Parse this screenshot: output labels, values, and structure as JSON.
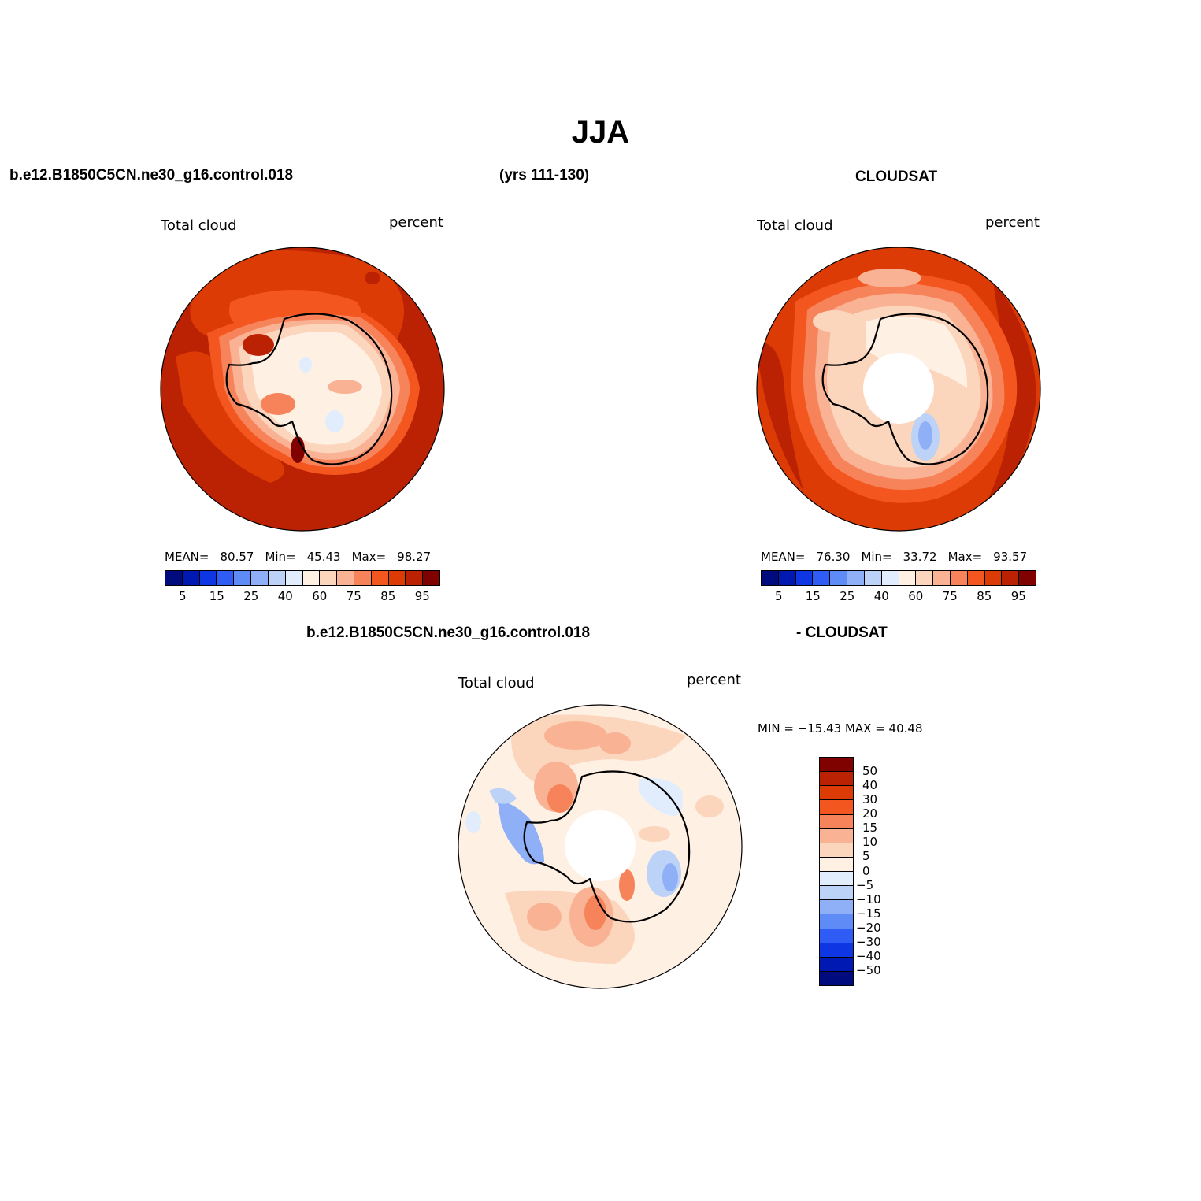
{
  "title": "JJA",
  "panel1": {
    "case_name": "b.e12.B1850C5CN.ne30_g16.control.018",
    "years": "(yrs 111-130)",
    "left_label": "Total cloud",
    "right_label": "percent",
    "mean_label": "MEAN=",
    "mean_value": "80.57",
    "min_label": "Min=",
    "min_value": "45.43",
    "max_label": "Max=",
    "max_value": "98.27"
  },
  "panel2": {
    "case_name": "CLOUDSAT",
    "left_label": "Total cloud",
    "right_label": "percent",
    "mean_label": "MEAN=",
    "mean_value": "76.30",
    "min_label": "Min=",
    "min_value": "33.72",
    "max_label": "Max=",
    "max_value": "93.57"
  },
  "panel3": {
    "case_name": "b.e12.B1850C5CN.ne30_g16.control.018",
    "minus_label": "- CLOUDSAT",
    "left_label": "Total cloud",
    "right_label": "percent",
    "minmax": "MIN = −15.43 MAX =   40.48"
  },
  "colorbar_abs": {
    "ticks": [
      "5",
      "15",
      "25",
      "40",
      "60",
      "75",
      "85",
      "95"
    ],
    "colors": [
      "#000b7e",
      "#0019b3",
      "#0f36e3",
      "#2e5cf4",
      "#5f8bf7",
      "#8fb0f6",
      "#bcd3f7",
      "#e1edfc",
      "#fff0e4",
      "#fcd5bd",
      "#f9b294",
      "#f7835b",
      "#f4561f",
      "#dd3b06",
      "#bb2203",
      "#7f0200"
    ]
  },
  "colorbar_diff": {
    "ticks": [
      "50",
      "40",
      "30",
      "20",
      "15",
      "10",
      "5",
      "0",
      "−5",
      "−10",
      "−15",
      "−20",
      "−30",
      "−40",
      "−50"
    ],
    "colors": [
      "#7f0200",
      "#bb2203",
      "#dd3b06",
      "#f4561f",
      "#f7835b",
      "#f9b294",
      "#fcd5bd",
      "#fff0e4",
      "#e1edfc",
      "#bcd3f7",
      "#8fb0f6",
      "#5f8bf7",
      "#2e5cf4",
      "#0f36e3",
      "#0019b3",
      "#000b7e"
    ]
  }
}
